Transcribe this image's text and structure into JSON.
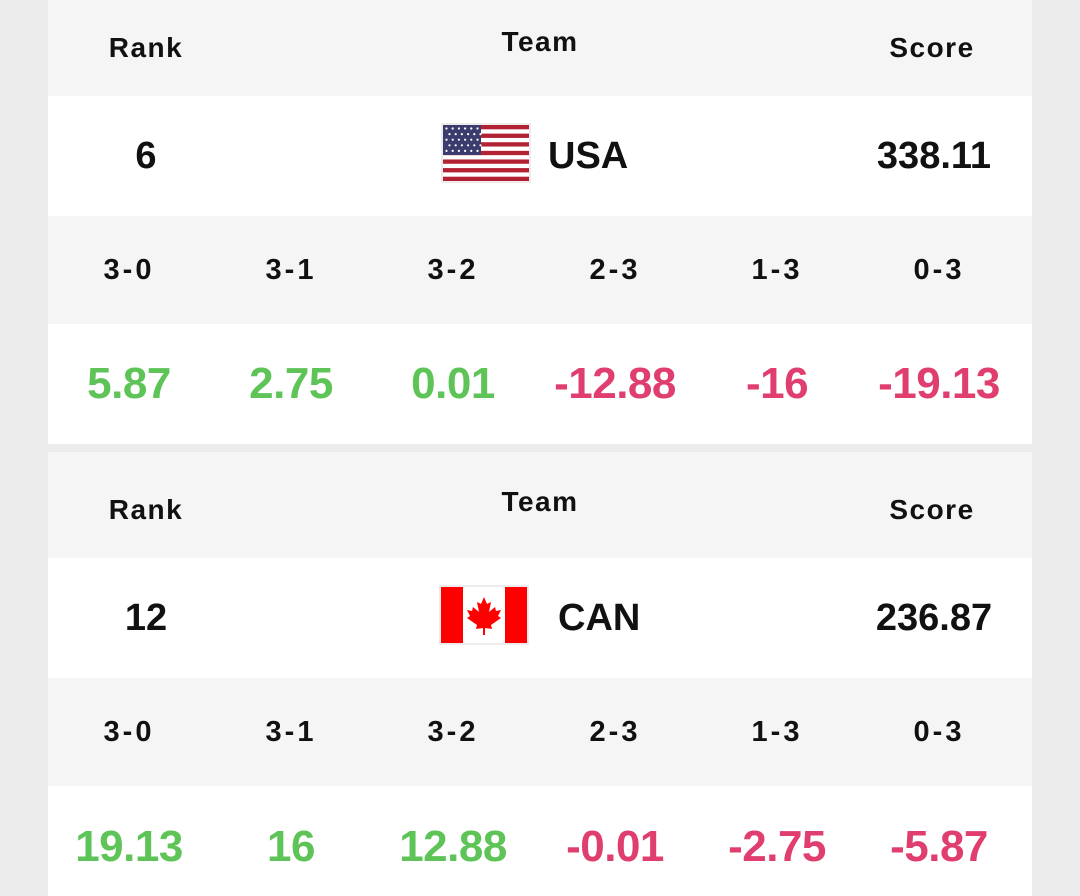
{
  "headers": {
    "rank": "Rank",
    "team": "Team",
    "score": "Score"
  },
  "colors": {
    "positive": "#5ec457",
    "negative": "#df3e6e",
    "usa_red": "#b22234",
    "usa_blue": "#3c3b6e",
    "can_red": "#ff0000"
  },
  "teams": [
    {
      "rank": "6",
      "code": "USA",
      "flag": "usa-flag",
      "score": "338.11",
      "sets": [
        {
          "label": "3-0",
          "value": "5.87",
          "sign": "positive"
        },
        {
          "label": "3-1",
          "value": "2.75",
          "sign": "positive"
        },
        {
          "label": "3-2",
          "value": "0.01",
          "sign": "positive"
        },
        {
          "label": "2-3",
          "value": "-12.88",
          "sign": "negative"
        },
        {
          "label": "1-3",
          "value": "-16",
          "sign": "negative"
        },
        {
          "label": "0-3",
          "value": "-19.13",
          "sign": "negative"
        }
      ]
    },
    {
      "rank": "12",
      "code": "CAN",
      "flag": "canada-flag",
      "score": "236.87",
      "sets": [
        {
          "label": "3-0",
          "value": "19.13",
          "sign": "positive"
        },
        {
          "label": "3-1",
          "value": "16",
          "sign": "positive"
        },
        {
          "label": "3-2",
          "value": "12.88",
          "sign": "positive"
        },
        {
          "label": "2-3",
          "value": "-0.01",
          "sign": "negative"
        },
        {
          "label": "1-3",
          "value": "-2.75",
          "sign": "negative"
        },
        {
          "label": "0-3",
          "value": "-5.87",
          "sign": "negative"
        }
      ]
    }
  ]
}
